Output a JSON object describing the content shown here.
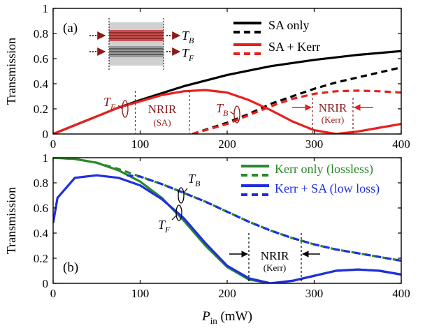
{
  "chart_data": [
    {
      "panel": "a",
      "type": "line",
      "panel_label": "(a)",
      "xlabel": "",
      "ylabel": "Transmission",
      "xlim": [
        0,
        400
      ],
      "ylim": [
        0,
        1
      ],
      "x_ticks": [
        0,
        100,
        200,
        300,
        400
      ],
      "x_tick_labels": [
        "0",
        "100",
        "200",
        "300",
        "400"
      ],
      "y_ticks": [
        0,
        0.2,
        0.4,
        0.6,
        0.8,
        1
      ],
      "y_tick_labels": [
        "0",
        "0.2",
        "0.4",
        "0.6",
        "0.8",
        "1"
      ],
      "legend_position": "top-right",
      "legend": [
        {
          "label": "SA only",
          "color": "#000000",
          "dash": false
        },
        {
          "label": "",
          "color": "#000000",
          "dash": true
        },
        {
          "label": "SA + Kerr",
          "color": "#e8201c",
          "dash": false
        },
        {
          "label": "",
          "color": "#e8201c",
          "dash": true
        }
      ],
      "series": [
        {
          "color": "#000000",
          "dash": false,
          "x": [
            0,
            25,
            50,
            75,
            100,
            150,
            200,
            250,
            300,
            350,
            400
          ],
          "y": [
            0.0,
            0.07,
            0.14,
            0.21,
            0.27,
            0.38,
            0.47,
            0.54,
            0.59,
            0.63,
            0.66
          ]
        },
        {
          "color": "#000000",
          "dash": true,
          "x": [
            160,
            200,
            225,
            250,
            275,
            300,
            325,
            350,
            375,
            400
          ],
          "y": [
            0.0,
            0.09,
            0.16,
            0.24,
            0.3,
            0.36,
            0.41,
            0.45,
            0.49,
            0.53
          ]
        },
        {
          "color": "#e8201c",
          "dash": false,
          "x": [
            0,
            25,
            50,
            75,
            100,
            125,
            150,
            175,
            200,
            225,
            250,
            275,
            300,
            325,
            350,
            375,
            400
          ],
          "y": [
            0.0,
            0.07,
            0.14,
            0.21,
            0.26,
            0.31,
            0.34,
            0.35,
            0.33,
            0.27,
            0.19,
            0.1,
            0.03,
            0.0,
            0.02,
            0.05,
            0.08
          ]
        },
        {
          "color": "#e8201c",
          "dash": true,
          "x": [
            160,
            200,
            225,
            250,
            275,
            300,
            325,
            350,
            375,
            400
          ],
          "y": [
            0.0,
            0.08,
            0.15,
            0.22,
            0.28,
            0.32,
            0.34,
            0.345,
            0.34,
            0.33
          ]
        }
      ],
      "annotations": [
        {
          "text": "NRIR",
          "sub": "(SA)",
          "x_from": 95,
          "x_to": 160
        },
        {
          "text": "NRIR",
          "sub": "(Kerr)",
          "x_from": 298,
          "x_to": 345
        }
      ],
      "curve_labels": [
        {
          "symbol": "T",
          "subscript": "F"
        },
        {
          "symbol": "T",
          "subscript": "B"
        }
      ],
      "inset_labels": [
        {
          "symbol": "T",
          "subscript": "B"
        },
        {
          "symbol": "T",
          "subscript": "F"
        }
      ]
    },
    {
      "panel": "b",
      "type": "line",
      "panel_label": "(b)",
      "xlabel_symbol": "P",
      "xlabel_subscript": "in",
      "xlabel_unit": " (mW)",
      "ylabel": "Transmission",
      "xlim": [
        0,
        400
      ],
      "ylim": [
        0,
        1
      ],
      "x_ticks": [
        0,
        100,
        200,
        300,
        400
      ],
      "x_tick_labels": [
        "0",
        "100",
        "200",
        "300",
        "400"
      ],
      "y_ticks": [
        0,
        0.2,
        0.4,
        0.6,
        0.8,
        1
      ],
      "y_tick_labels": [
        "0",
        "0.2",
        "0.4",
        "0.6",
        "0.8",
        "1"
      ],
      "legend_position": "top-right",
      "legend": [
        {
          "label": "Kerr only (lossless)",
          "color": "#2a8a2a",
          "dash": false
        },
        {
          "label": "",
          "color": "#2a8a2a",
          "dash": true
        },
        {
          "label": "Kerr + SA (low loss)",
          "color": "#1f2fe0",
          "dash": false
        },
        {
          "label": "",
          "color": "#1f2fe0",
          "dash": true
        }
      ],
      "series": [
        {
          "color": "#2a8a2a",
          "dash": false,
          "x": [
            0,
            25,
            50,
            75,
            100,
            125,
            150,
            175,
            200,
            225,
            250,
            275,
            300,
            325,
            350,
            375,
            400
          ],
          "y": [
            1.0,
            0.99,
            0.96,
            0.9,
            0.81,
            0.68,
            0.5,
            0.3,
            0.13,
            0.03,
            0.0,
            0.02,
            0.06,
            0.1,
            0.11,
            0.1,
            0.07
          ]
        },
        {
          "color": "#2a8a2a",
          "dash": true,
          "x": [
            0,
            25,
            50,
            75,
            100,
            125,
            150,
            175,
            200,
            225,
            250,
            275,
            300,
            325,
            350,
            375,
            400
          ],
          "y": [
            1.0,
            0.99,
            0.96,
            0.91,
            0.85,
            0.79,
            0.72,
            0.65,
            0.57,
            0.49,
            0.42,
            0.36,
            0.31,
            0.27,
            0.24,
            0.21,
            0.18
          ]
        },
        {
          "color": "#1f2fe0",
          "dash": false,
          "x": [
            0,
            5,
            25,
            50,
            75,
            100,
            125,
            150,
            175,
            200,
            225,
            250,
            275,
            300,
            325,
            350,
            375,
            400
          ],
          "y": [
            0.48,
            0.68,
            0.84,
            0.86,
            0.84,
            0.78,
            0.67,
            0.52,
            0.32,
            0.14,
            0.04,
            0.0,
            0.02,
            0.06,
            0.1,
            0.11,
            0.1,
            0.07
          ]
        },
        {
          "color": "#1f2fe0",
          "dash": true,
          "x": [
            85,
            100,
            125,
            150,
            175,
            200,
            225,
            250,
            275,
            300,
            325,
            350,
            375,
            400
          ],
          "y": [
            0.86,
            0.85,
            0.79,
            0.72,
            0.65,
            0.57,
            0.49,
            0.42,
            0.36,
            0.31,
            0.27,
            0.24,
            0.21,
            0.18
          ]
        }
      ],
      "annotations": [
        {
          "text": "NRIR",
          "sub": "(Kerr)",
          "x_from": 225,
          "x_to": 285
        }
      ],
      "curve_labels": [
        {
          "symbol": "T",
          "subscript": "B"
        },
        {
          "symbol": "T",
          "subscript": "F"
        }
      ]
    }
  ]
}
